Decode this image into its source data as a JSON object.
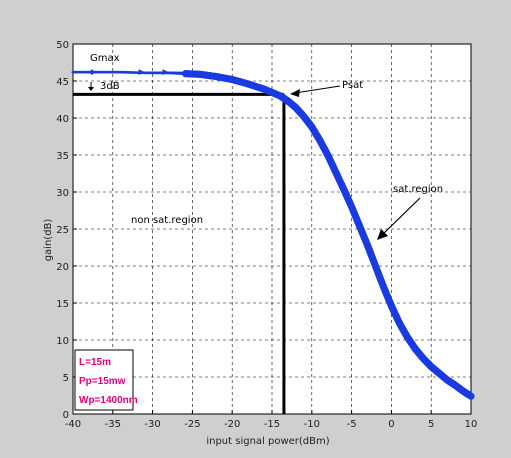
{
  "chart_data": {
    "type": "scatter",
    "title": "",
    "xlabel": "input signal power(dBm)",
    "ylabel": "gain(dB)",
    "xlim": [
      -40,
      10
    ],
    "ylim": [
      0,
      50
    ],
    "xticks": [
      -40,
      -35,
      -30,
      -25,
      -20,
      -15,
      -10,
      -5,
      0,
      5,
      10
    ],
    "yticks": [
      0,
      5,
      10,
      15,
      20,
      25,
      30,
      35,
      40,
      45,
      50
    ],
    "xtick_labels": [
      "-40",
      "-35",
      "-30",
      "-25",
      "-20",
      "-15",
      "-10",
      "-5",
      "0",
      "5",
      "10"
    ],
    "ytick_labels": [
      "0",
      "5",
      "10",
      "15",
      "20",
      "25",
      "30",
      "35",
      "40",
      "45",
      "50"
    ],
    "grid": true,
    "series": [
      {
        "color": "#1a3be0",
        "x": [
          -40,
          -37,
          -34,
          -31,
          -28,
          -26,
          -24,
          -22,
          -20,
          -18,
          -16,
          -14,
          -13,
          -12,
          -11,
          -10,
          -9,
          -8,
          -7,
          -6,
          -5,
          -4,
          -3,
          -2,
          -1,
          0,
          1,
          2,
          3,
          4,
          5,
          6,
          7,
          8,
          9,
          10
        ],
        "y": [
          46.2,
          46.2,
          46.2,
          46.1,
          46.1,
          46.0,
          45.9,
          45.6,
          45.2,
          44.6,
          43.9,
          43.0,
          42.3,
          41.4,
          40.2,
          38.8,
          37.0,
          35.0,
          32.7,
          30.4,
          28.0,
          25.4,
          22.8,
          20.0,
          17.2,
          14.6,
          12.3,
          10.4,
          8.8,
          7.5,
          6.4,
          5.5,
          4.6,
          3.9,
          3.1,
          2.4
        ]
      }
    ],
    "reference_lines": {
      "psat_x": -13.5,
      "gain_minus_3db": 43.2,
      "gmax": 46.2
    },
    "annotations": {
      "gmax": "Gmax",
      "minus3db": "3dB",
      "psat": "Psat",
      "sat_region": "sat.region",
      "non_sat_region": "non sat.region"
    },
    "legend": {
      "placement": "bottom-left",
      "lines": [
        "L=15m",
        "Pp=15mw",
        "Wp=1400nm"
      ],
      "color": "#e0007a"
    }
  }
}
